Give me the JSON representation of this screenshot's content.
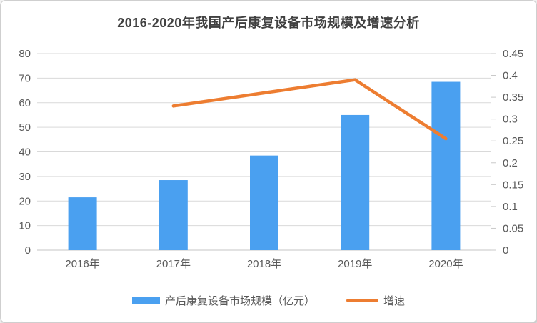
{
  "title": "2016-2020年我国产后康复设备市场规模及增速分析",
  "legend": {
    "bars": "产后康复设备市场规模（亿元）",
    "line": "增速"
  },
  "colors": {
    "bar": "#4AA0F0",
    "line": "#ED7D31",
    "grid": "#D9D9D9",
    "baseline": "#C6C6C6",
    "tick": "#C9C9C9",
    "axis_text": "#595959",
    "title_text": "#404040"
  },
  "chart_data": {
    "type": "bar",
    "subtype": "bar-line-combo",
    "title": "2016-2020年我国产后康复设备市场规模及增速分析",
    "categories": [
      "2016年",
      "2017年",
      "2018年",
      "2019年",
      "2020年"
    ],
    "series": [
      {
        "name": "产后康复设备市场规模（亿元）",
        "type": "bar",
        "axis": "left",
        "values": [
          21.5,
          28.5,
          38.5,
          55,
          68.5
        ]
      },
      {
        "name": "增速",
        "type": "line",
        "axis": "right",
        "values": [
          null,
          0.33,
          0.36,
          0.39,
          0.255
        ]
      }
    ],
    "left_axis": {
      "min": 0,
      "max": 80,
      "step": 10,
      "ticks": [
        "0",
        "10",
        "20",
        "30",
        "40",
        "50",
        "60",
        "70",
        "80"
      ]
    },
    "right_axis": {
      "min": 0,
      "max": 0.45,
      "step": 0.05,
      "ticks": [
        "0",
        "0.05",
        "0.1",
        "0.15",
        "0.2",
        "0.25",
        "0.3",
        "0.35",
        "0.4",
        "0.45"
      ]
    },
    "grid": true,
    "legend_position": "bottom"
  }
}
